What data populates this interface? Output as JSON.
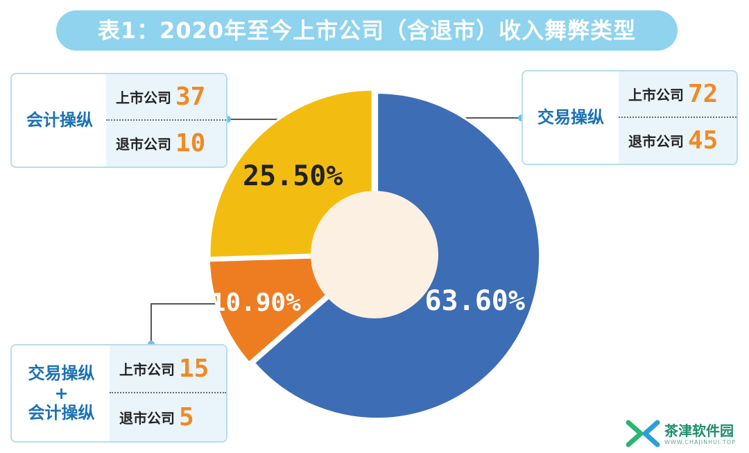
{
  "title": "表1：2020年至今上市公司（含退市）收入舞弊类型",
  "chart_data": {
    "type": "pie",
    "title": "表1：2020年至今上市公司（含退市）收入舞弊类型",
    "slices": [
      {
        "name": "交易操纵",
        "value": 63.6,
        "label": "63.60%",
        "color": "#3d6db5",
        "listed_label": "上市公司",
        "listed": 72,
        "delisted_label": "退市公司",
        "delisted": 45
      },
      {
        "name": "交易操纵+会计操纵",
        "value": 10.9,
        "label": "10.90%",
        "color": "#ee7d22",
        "listed_label": "上市公司",
        "listed": 15,
        "delisted_label": "退市公司",
        "delisted": 5
      },
      {
        "name": "会计操纵",
        "value": 25.5,
        "label": "25.50%",
        "color": "#f2bd10",
        "listed_label": "上市公司",
        "listed": 37,
        "delisted_label": "退市公司",
        "delisted": 10
      }
    ],
    "center_color": "#fcf0e2"
  },
  "callouts": {
    "jiaoyi": {
      "name": "交易操纵"
    },
    "kuaiji": {
      "name": "会计操纵"
    },
    "combo": {
      "name_top": "交易操纵",
      "name_plus": "+",
      "name_bottom": "会计操纵"
    }
  },
  "watermark": {
    "text": "茶津软件园",
    "sub": "WWW.CHAJINHUI.TOP"
  }
}
